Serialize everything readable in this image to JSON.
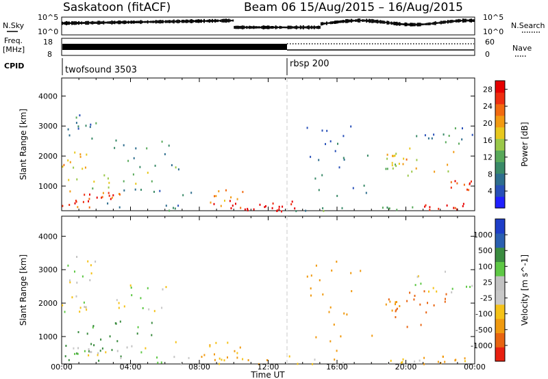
{
  "header": {
    "title": "Saskatoon (fitACF)",
    "beam_info": "Beam 06  15/Aug/2015 – 16/Aug/2015"
  },
  "top_panels": {
    "nsky_label": "N.Sky",
    "nsky_ticks": [
      "10^5",
      "10^0"
    ],
    "nsearch_label": "N.Search",
    "nsearch_ticks": [
      "10^5",
      "10^0"
    ],
    "freq_label": "Freq.",
    "freq_unit": "[MHz]",
    "freq_ticks": [
      "18",
      "8"
    ],
    "nave_label": "Nave",
    "nave_ticks": [
      "60",
      "0"
    ],
    "cpid_label": "CPID",
    "cpid_segments": [
      {
        "name": "twofsound 3503",
        "start_hour": 0,
        "end_hour": 13
      },
      {
        "name": "rbsp 200",
        "start_hour": 13,
        "end_hour": 24
      }
    ]
  },
  "colors": {
    "power_scale": [
      "#2020ff",
      "#2850b8",
      "#2e6e8e",
      "#3a8a68",
      "#58a95a",
      "#9bc84a",
      "#e8c81e",
      "#f29a12",
      "#f26a10",
      "#ee2e10",
      "#e60000"
    ],
    "velocity_scale": [
      "#1e3ec8",
      "#2a5fb0",
      "#3b8c40",
      "#5ec845",
      "#c2c2c2",
      "#c8c8c8",
      "#f5c218",
      "#f09a10",
      "#e86410",
      "#e82010"
    ]
  },
  "chart_data": [
    {
      "type": "heatmap",
      "title": "Power",
      "xlabel": "Time UT",
      "ylabel": "Slant Range [km]",
      "x_ticks": [
        "00:00",
        "04:00",
        "08:00",
        "12:00",
        "16:00",
        "20:00",
        "00:00"
      ],
      "y_ticks": [
        "1000",
        "2000",
        "3000",
        "4000"
      ],
      "xlim": [
        0,
        24
      ],
      "ylim": [
        180,
        4600
      ],
      "colorbar": {
        "label": "Power [dB]",
        "ticks": [
          "4",
          "8",
          "12",
          "16",
          "20",
          "24",
          "28"
        ],
        "range": [
          0,
          30
        ]
      },
      "regions": [
        {
          "t0": 0.0,
          "t1": 3.4,
          "r0": 300,
          "r1": 1000,
          "value": 22
        },
        {
          "t0": 0.6,
          "t1": 3.0,
          "r0": 450,
          "r1": 800,
          "value": 28
        },
        {
          "t0": 0.0,
          "t1": 1.5,
          "r0": 1600,
          "r1": 2200,
          "value": 20
        },
        {
          "t0": 0.2,
          "t1": 5.4,
          "r0": 900,
          "r1": 1500,
          "value": 14
        },
        {
          "t0": 3.0,
          "t1": 7.0,
          "r0": 1400,
          "r1": 2600,
          "value": 10
        },
        {
          "t0": 0.3,
          "t1": 2.0,
          "r0": 2600,
          "r1": 3500,
          "value": 8
        },
        {
          "t0": 2.5,
          "t1": 7.5,
          "r0": 200,
          "r1": 1000,
          "value": 8
        },
        {
          "t0": 8.6,
          "t1": 10.5,
          "r0": 300,
          "r1": 900,
          "value": 20
        },
        {
          "t0": 8.0,
          "t1": 14.0,
          "r0": 200,
          "r1": 550,
          "value": 28
        },
        {
          "t0": 9.5,
          "t1": 13.0,
          "r0": 180,
          "r1": 400,
          "value": 30
        },
        {
          "t0": 13.5,
          "t1": 21.0,
          "r0": 200,
          "r1": 350,
          "value": 10
        },
        {
          "t0": 14.0,
          "t1": 18.0,
          "r0": 600,
          "r1": 3300,
          "value": 8
        },
        {
          "t0": 18.8,
          "t1": 19.6,
          "r0": 1600,
          "r1": 2200,
          "value": 16
        },
        {
          "t0": 19.0,
          "t1": 23.0,
          "r0": 1300,
          "r1": 2400,
          "value": 18
        },
        {
          "t0": 21.0,
          "t1": 24.0,
          "r0": 200,
          "r1": 450,
          "value": 28
        },
        {
          "t0": 22.5,
          "t1": 23.8,
          "r0": 900,
          "r1": 1200,
          "value": 26
        },
        {
          "t0": 20.0,
          "t1": 24.0,
          "r0": 2300,
          "r1": 3000,
          "value": 8
        }
      ]
    },
    {
      "type": "heatmap",
      "title": "Velocity",
      "xlabel": "Time UT",
      "ylabel": "Slant Range [km]",
      "x_ticks": [
        "00:00",
        "04:00",
        "08:00",
        "12:00",
        "16:00",
        "20:00",
        "00:00"
      ],
      "y_ticks": [
        "1000",
        "2000",
        "3000",
        "4000"
      ],
      "xlim": [
        0,
        24
      ],
      "ylim": [
        180,
        4600
      ],
      "colorbar": {
        "label": "Velocity [m s^-1]",
        "ticks": [
          "1000",
          "500",
          "100",
          "25",
          "-25",
          "-100",
          "-500",
          "-1000"
        ],
        "range": [
          -1000,
          1000
        ]
      },
      "regions": [
        {
          "t0": 0.0,
          "t1": 3.5,
          "r0": 300,
          "r1": 1000,
          "value": 200
        },
        {
          "t0": 0.5,
          "t1": 2.5,
          "r0": 400,
          "r1": 700,
          "value": 0
        },
        {
          "t0": 0.0,
          "t1": 1.5,
          "r0": 1600,
          "r1": 2300,
          "value": 0
        },
        {
          "t0": 0.3,
          "t1": 5.5,
          "r0": 900,
          "r1": 1500,
          "value": 150
        },
        {
          "t0": 3.0,
          "t1": 6.5,
          "r0": 1400,
          "r1": 2600,
          "value": 0
        },
        {
          "t0": 0.3,
          "t1": 2.0,
          "r0": 2600,
          "r1": 3500,
          "value": 0
        },
        {
          "t0": 2.5,
          "t1": 7.5,
          "r0": 200,
          "r1": 900,
          "value": 0
        },
        {
          "t0": 8.5,
          "t1": 10.5,
          "r0": 300,
          "r1": 900,
          "value": -80
        },
        {
          "t0": 8.0,
          "t1": 14.0,
          "r0": 200,
          "r1": 550,
          "value": -80
        },
        {
          "t0": 13.5,
          "t1": 21.0,
          "r0": 200,
          "r1": 350,
          "value": -60
        },
        {
          "t0": 14.0,
          "t1": 18.0,
          "r0": 600,
          "r1": 3300,
          "value": -200
        },
        {
          "t0": 18.8,
          "t1": 19.6,
          "r0": 1600,
          "r1": 2200,
          "value": -300
        },
        {
          "t0": 19.0,
          "t1": 23.0,
          "r0": 1300,
          "r1": 2400,
          "value": -400
        },
        {
          "t0": 21.0,
          "t1": 24.0,
          "r0": 200,
          "r1": 450,
          "value": -150
        },
        {
          "t0": 20.0,
          "t1": 24.0,
          "r0": 2300,
          "r1": 3000,
          "value": 0
        }
      ]
    }
  ]
}
